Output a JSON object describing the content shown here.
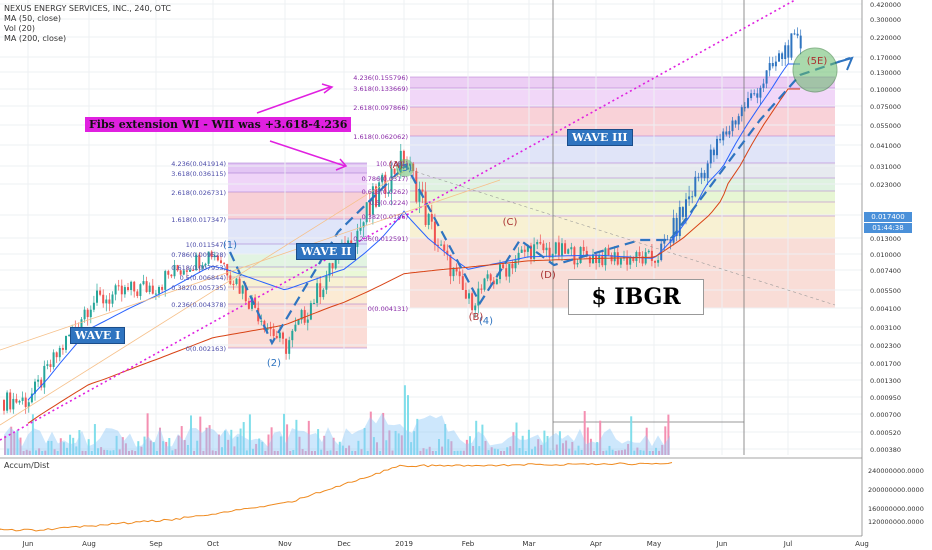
{
  "header": {
    "title": "NEXUS ENERGY SERVICES, INC., 240, OTC",
    "studies": [
      "MA (50, close)",
      "Vol (20)",
      "MA (200, close)"
    ]
  },
  "indicator": {
    "title": "Accum/Dist"
  },
  "price_tag": {
    "value": "0.017400",
    "countdown": "01:44:38"
  },
  "annotations": {
    "fib_note": "Fibs extension WI - WII was +3.618-4.236",
    "ticker": "$ IBGR",
    "waves": [
      "WAVE I",
      "WAVE II",
      "WAVE III"
    ],
    "counts": [
      "(1)",
      "(2)",
      "(3)",
      "(4)",
      "(5E)",
      "(A)",
      "(B)",
      "(C)",
      "(D)",
      "(E)"
    ]
  },
  "fib_levels": {
    "first": [
      {
        "label": "4.236(0.041914)"
      },
      {
        "label": "3.618(0.036115)"
      },
      {
        "label": "2.618(0.026731)"
      },
      {
        "label": "1.618(0.017347)"
      },
      {
        "label": "1(0.011547)"
      },
      {
        "label": "0.786(0.009528)"
      },
      {
        "label": "0.618(0.007953)"
      },
      {
        "label": "0.5(0.006844)"
      },
      {
        "label": "0.382(0.005735)"
      },
      {
        "label": "0.236(0.004378)"
      },
      {
        "label": "0(0.002163)"
      }
    ],
    "second": [
      {
        "label": "4.236(0.155796)"
      },
      {
        "label": "3.618(0.133669)"
      },
      {
        "label": "2.618(0.097866)"
      },
      {
        "label": "1.618(0.062062)"
      },
      {
        "label": "1(0.0381)"
      },
      {
        "label": "0.786(0.0317)"
      },
      {
        "label": "0.618(0.0262)"
      },
      {
        "label": "0.5(0.0224)"
      },
      {
        "label": "0.382(0.0186)"
      },
      {
        "label": "0.236(0.012591)"
      },
      {
        "label": "0(0.004131)"
      }
    ]
  },
  "chart_data": {
    "type": "line",
    "scale": "log",
    "title": "NEXUS ENERGY SERVICES, INC., 240, OTC",
    "x_ticks": [
      "Jun",
      "Aug",
      "Sep",
      "Oct",
      "Nov",
      "Dec",
      "2019",
      "Feb",
      "Mar",
      "Apr",
      "May",
      "Jun",
      "Jul",
      "Aug"
    ],
    "y_ticks": [
      "0.420000",
      "0.300000",
      "0.220000",
      "0.170000",
      "0.130000",
      "0.100000",
      "0.075000",
      "0.055000",
      "0.041000",
      "0.031000",
      "0.023000",
      "0.017400",
      "0.013000",
      "0.010000",
      "0.007400",
      "0.005500",
      "0.004100",
      "0.003100",
      "0.002300",
      "0.001700",
      "0.001300",
      "0.000950",
      "0.000700",
      "0.000520",
      "0.000380"
    ],
    "ind_ticks": [
      "240000000.0000",
      "200000000.0000",
      "160000000.0000",
      "120000000.0000"
    ],
    "series": [
      {
        "x": [
          "Jun",
          "Aug",
          "Sep",
          "Oct",
          "Nov",
          "Dec",
          "2019",
          "Feb",
          "Mar",
          "Apr",
          "May",
          "Jun",
          "Jul"
        ],
        "values": [
          0.0009,
          0.0045,
          0.006,
          0.0105,
          0.0022,
          0.011,
          0.035,
          0.0045,
          0.011,
          0.0095,
          0.009,
          0.045,
          0.2
        ]
      },
      {
        "name": "MA (50, close)",
        "x": [
          "Jun",
          "Aug",
          "Sep",
          "Oct",
          "Nov",
          "Dec",
          "2019",
          "Feb",
          "Mar",
          "Apr",
          "May",
          "Jun",
          "Jul"
        ],
        "values": [
          0.0009,
          0.003,
          0.005,
          0.008,
          0.0055,
          0.0075,
          0.018,
          0.0075,
          0.0095,
          0.0098,
          0.0092,
          0.03,
          0.15
        ]
      },
      {
        "name": "MA (200, close)",
        "x": [
          "Jun",
          "Aug",
          "Sep",
          "Oct",
          "Nov",
          "Dec",
          "2019",
          "Feb",
          "Mar",
          "Apr",
          "May",
          "Jun",
          "Jul"
        ],
        "values": [
          0.0006,
          0.0012,
          0.0018,
          0.0026,
          0.0032,
          0.0045,
          0.007,
          0.0078,
          0.0088,
          0.0092,
          0.0094,
          0.02,
          0.1
        ]
      }
    ]
  },
  "colors": {
    "up": "#26a69a",
    "down": "#ef5350",
    "ma50": "#2962ff",
    "ma200": "#d84315",
    "accum": "#ef8a1f",
    "wave_line": "#2f74c0",
    "magenta": "#e020e0"
  }
}
